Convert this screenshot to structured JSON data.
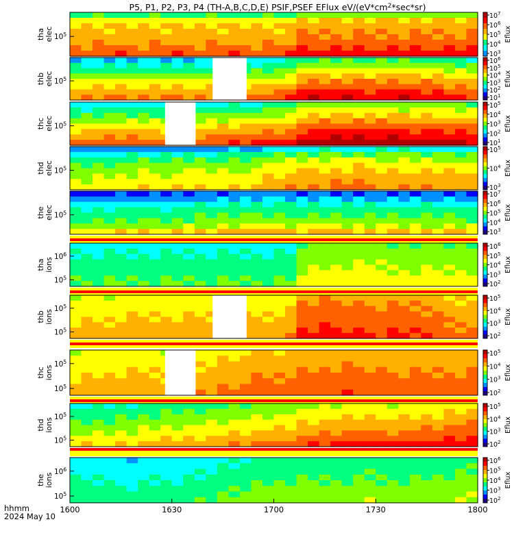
{
  "title": "P5, P1, P2, P3, P4 (TH-A,B,C,D,E) PSIF,PSEF EFlux eV/(eV*cm^2*sec*sr)",
  "footer": {
    "line1": "hhmm",
    "line2": "2024 May 10"
  },
  "colors": {
    "colormap": [
      "#20007a",
      "#0000ff",
      "#0090ff",
      "#00ffff",
      "#00ff80",
      "#7fff00",
      "#ffff00",
      "#ffb000",
      "#ff6000",
      "#ff0000",
      "#b00000"
    ],
    "flag_red": "#ff0000",
    "flag_yellow": "#ffff00",
    "flag_black": "#000000",
    "gap": "#ffffff"
  },
  "chart_data": {
    "type": "heatmap",
    "x_ticks": [
      "1600",
      "1630",
      "1700",
      "1730",
      "1800"
    ],
    "x_range": [
      "16:00",
      "18:00"
    ],
    "x_bins": 36,
    "panels": [
      {
        "id": "tha-elec",
        "ylabel": [
          "tha",
          "elec"
        ],
        "y_ticks": [
          "10^5"
        ],
        "cbar_label": "Eflux",
        "cbar_ticks": [
          "10^7",
          "10^6",
          "10^5",
          "10^4",
          "10^3"
        ],
        "cbar_colors": [
          2,
          3,
          4,
          6,
          7,
          8,
          9,
          10
        ],
        "data_gap": null,
        "base": [
          3.3,
          3.3,
          3.3,
          3.3,
          3.3,
          3.3,
          3.3,
          3.3,
          3.3,
          3.3,
          3.3,
          3.3,
          3.3,
          3.3,
          3.3,
          3.3,
          3.3,
          3.3,
          3.3,
          3.3,
          4.0,
          4.0,
          4.0,
          4.0,
          4.0,
          4.0,
          4.0,
          4.0,
          4.0,
          4.0,
          4.0,
          4.0,
          4.0,
          4.0,
          4.0,
          4.0
        ],
        "bands": [
          1.0,
          2.6,
          3.2,
          3.4,
          3.6,
          4.0,
          4.4,
          5.0
        ],
        "flags": null
      },
      {
        "id": "thb-elec",
        "ylabel": [
          "thb",
          "elec"
        ],
        "y_ticks": [
          "10^5"
        ],
        "cbar_label": "Eflux",
        "cbar_ticks": [
          "10^6",
          "10^5",
          "10^4",
          "10^3",
          "10^2",
          "10^1"
        ],
        "cbar_colors": [
          0,
          1,
          2,
          3,
          4,
          5,
          6,
          7,
          8,
          9,
          10
        ],
        "data_gap": [
          "16:42",
          "16:52"
        ],
        "base": [
          5.8,
          5.8,
          5.8,
          5.8,
          5.8,
          5.8,
          5.8,
          5.8,
          5.8,
          5.8,
          5.8,
          5.8,
          5.8,
          5.8,
          6.0,
          6.0,
          6.0,
          6.0,
          6.2,
          6.6,
          7.4,
          7.6,
          7.6,
          7.4,
          7.6,
          7.6,
          7.4,
          7.6,
          7.6,
          7.6,
          7.4,
          7.4,
          7.4,
          7.0,
          7.0,
          6.8
        ],
        "bands": [
          -3.2,
          -2.4,
          -1.6,
          -0.8,
          0.0,
          0.6,
          1.2,
          1.8
        ],
        "flags": null
      },
      {
        "id": "thc-elec",
        "ylabel": [
          "thc",
          "elec"
        ],
        "y_ticks": [
          "10^5"
        ],
        "cbar_label": "Eflux",
        "cbar_ticks": [
          "10^5",
          "10^4",
          "10^3",
          "10^2",
          "10^1"
        ],
        "cbar_colors": [
          0,
          1,
          2,
          3,
          4,
          5,
          6,
          7,
          8,
          9,
          10
        ],
        "data_gap": [
          "16:28",
          "16:37"
        ],
        "base": [
          5.6,
          5.6,
          5.6,
          5.8,
          5.8,
          5.8,
          5.8,
          5.8,
          5.6,
          5.6,
          5.6,
          5.8,
          6.0,
          6.0,
          6.2,
          6.2,
          6.2,
          6.6,
          6.6,
          6.8,
          7.6,
          7.8,
          7.8,
          7.8,
          7.8,
          7.8,
          7.8,
          7.8,
          7.8,
          7.6,
          7.6,
          7.8,
          7.6,
          7.6,
          7.4,
          7.4
        ],
        "bands": [
          -2.8,
          -2.0,
          -1.2,
          -0.4,
          0.4,
          1.0,
          1.6,
          2.2
        ],
        "flags": null
      },
      {
        "id": "thd-elec",
        "ylabel": [
          "thd",
          "elec"
        ],
        "y_ticks": [
          "10^5"
        ],
        "cbar_label": "Eflux",
        "cbar_ticks": [
          "10^5",
          "10^4",
          "10^3"
        ],
        "cbar_colors": [
          0,
          1,
          2,
          3,
          4,
          5,
          6,
          7,
          8,
          9,
          10
        ],
        "data_gap": null,
        "base": [
          4.8,
          4.8,
          5.0,
          4.8,
          5.0,
          5.0,
          5.2,
          5.0,
          5.0,
          5.2,
          5.4,
          5.2,
          5.0,
          5.2,
          5.4,
          5.2,
          5.4,
          5.8,
          6.0,
          6.2,
          6.4,
          6.2,
          6.4,
          6.4,
          6.2,
          6.6,
          6.2,
          6.4,
          6.2,
          6.4,
          6.2,
          6.2,
          6.2,
          6.2,
          6.0,
          6.2
        ],
        "bands": [
          -3.0,
          -1.6,
          -0.8,
          -0.2,
          0.2,
          0.6,
          0.9,
          1.2
        ],
        "flags": null
      },
      {
        "id": "the-elec",
        "ylabel": [
          "the",
          "elec"
        ],
        "y_ticks": [
          "10^5"
        ],
        "cbar_label": "Eflux",
        "cbar_ticks": [
          "10^7",
          "10^6",
          "10^5",
          "10^4",
          "10^3"
        ],
        "cbar_colors": [
          0,
          1,
          2,
          3,
          4,
          5,
          6,
          7,
          8,
          9,
          10
        ],
        "data_gap": null,
        "base": [
          3.4,
          3.4,
          3.6,
          3.6,
          3.8,
          3.6,
          3.8,
          3.8,
          3.6,
          3.8,
          3.8,
          4.0,
          3.8,
          4.0,
          4.0,
          4.2,
          4.2,
          4.2,
          4.2,
          4.0,
          4.0,
          4.2,
          4.2,
          4.0,
          4.0,
          4.0,
          4.0,
          4.0,
          4.0,
          3.8,
          4.0,
          4.0,
          3.8,
          4.0,
          3.8,
          3.8
        ],
        "bands": [
          -2.4,
          -1.6,
          -0.6,
          0.0,
          0.4,
          0.8,
          1.6,
          2.6
        ],
        "flags": [
          "y",
          "r",
          "y"
        ]
      },
      {
        "id": "tha-ions",
        "ylabel": [
          "tha",
          "ions"
        ],
        "y_ticks": [
          "10^6",
          "10^5"
        ],
        "cbar_label": "Eflux",
        "cbar_ticks": [
          "10^6",
          "10^5",
          "10^4",
          "10^3",
          "10^2"
        ],
        "cbar_colors": [
          0,
          1,
          2,
          3,
          4,
          5,
          6,
          7,
          8,
          9,
          10
        ],
        "data_gap": null,
        "base": [
          3.6,
          3.6,
          3.6,
          3.6,
          3.6,
          3.6,
          3.6,
          3.6,
          3.6,
          3.6,
          3.6,
          3.6,
          3.6,
          3.6,
          3.6,
          3.6,
          3.6,
          3.6,
          3.6,
          3.6,
          5.0,
          5.2,
          5.0,
          5.2,
          5.0,
          5.2,
          5.0,
          5.2,
          5.0,
          5.2,
          5.0,
          5.2,
          5.0,
          5.0,
          5.0,
          5.0
        ],
        "bands": [
          -0.4,
          -0.2,
          0.0,
          0.2,
          0.4,
          0.6,
          0.8,
          1.0
        ],
        "flags": [
          "y",
          "r",
          "y"
        ]
      },
      {
        "id": "thb-ions",
        "ylabel": [
          "thb",
          "ions"
        ],
        "y_ticks": [
          "10^5",
          "10^5"
        ],
        "cbar_label": "Eflux",
        "cbar_ticks": [
          "10^5",
          "10^4",
          "10^3",
          "10^2"
        ],
        "cbar_colors": [
          0,
          1,
          2,
          3,
          4,
          5,
          6,
          7,
          8,
          9,
          10
        ],
        "data_gap": [
          "16:42",
          "16:52"
        ],
        "base": [
          6.2,
          6.2,
          6.2,
          6.2,
          6.4,
          6.4,
          6.4,
          6.4,
          6.4,
          6.4,
          6.4,
          6.4,
          6.4,
          6.4,
          6.4,
          6.4,
          6.4,
          6.4,
          6.6,
          6.6,
          8.0,
          7.8,
          8.0,
          7.8,
          7.8,
          8.0,
          7.8,
          7.8,
          8.0,
          7.8,
          7.8,
          7.6,
          7.8,
          7.2,
          7.0,
          7.0
        ],
        "bands": [
          -0.6,
          -0.4,
          -0.2,
          0.0,
          0.2,
          0.4,
          0.6,
          0.8
        ],
        "flags": [
          "y",
          "r",
          "y"
        ]
      },
      {
        "id": "thc-ions",
        "ylabel": [
          "thc",
          "ions"
        ],
        "y_ticks": [
          "10^5",
          "10^5"
        ],
        "cbar_label": "Eflux",
        "cbar_ticks": [
          "10^5",
          "10^4",
          "10^3",
          "10^2"
        ],
        "cbar_colors": [
          0,
          1,
          2,
          3,
          4,
          5,
          6,
          7,
          8,
          9,
          10
        ],
        "data_gap": [
          "16:28",
          "16:37"
        ],
        "base": [
          6.2,
          6.2,
          6.2,
          6.4,
          6.4,
          6.4,
          6.4,
          6.4,
          6.2,
          6.4,
          6.6,
          6.6,
          6.6,
          6.8,
          6.8,
          7.0,
          7.2,
          7.0,
          7.2,
          7.2,
          7.4,
          7.4,
          7.6,
          7.4,
          7.6,
          7.4,
          7.4,
          7.6,
          7.4,
          7.4,
          7.4,
          7.4,
          7.4,
          7.4,
          7.2,
          7.4
        ],
        "bands": [
          -0.6,
          -0.4,
          -0.2,
          0.0,
          0.2,
          0.4,
          0.6,
          0.8
        ],
        "flags": [
          "y",
          "r",
          "y"
        ]
      },
      {
        "id": "thd-ions",
        "ylabel": [
          "thd",
          "ions"
        ],
        "y_ticks": [
          "10^5",
          "10^5"
        ],
        "cbar_label": "Eflux",
        "cbar_ticks": [
          "10^5",
          "10^4",
          "10^3",
          "10^2"
        ],
        "cbar_colors": [
          0,
          1,
          2,
          3,
          4,
          5,
          6,
          7,
          8,
          9,
          10
        ],
        "data_gap": null,
        "base": [
          4.6,
          4.6,
          4.8,
          4.6,
          4.8,
          4.8,
          5.0,
          5.0,
          5.2,
          5.0,
          5.2,
          5.4,
          5.4,
          5.6,
          5.6,
          5.8,
          5.8,
          6.0,
          6.0,
          6.2,
          6.6,
          6.6,
          6.8,
          6.8,
          6.8,
          7.0,
          6.8,
          7.0,
          6.8,
          7.0,
          7.0,
          7.2,
          7.0,
          7.2,
          7.4,
          7.6
        ],
        "bands": [
          -1.2,
          -0.8,
          -0.4,
          0.0,
          0.4,
          0.8,
          1.2,
          1.8
        ],
        "flags": [
          "r",
          "y",
          "y"
        ]
      },
      {
        "id": "the-ions",
        "ylabel": [
          "the",
          "ions"
        ],
        "y_ticks": [
          "10^6",
          "10^5"
        ],
        "cbar_label": "Eflux",
        "cbar_ticks": [
          "10^6",
          "10^5",
          "10^4",
          "10^3",
          "10^2"
        ],
        "cbar_colors": [
          0,
          1,
          2,
          3,
          4,
          5,
          6,
          7,
          8,
          9,
          10
        ],
        "data_gap": null,
        "base": [
          3.4,
          3.4,
          3.4,
          3.4,
          3.2,
          3.2,
          3.2,
          3.4,
          3.4,
          3.4,
          3.6,
          3.6,
          3.8,
          3.8,
          4.0,
          4.0,
          4.2,
          4.2,
          4.4,
          4.4,
          4.6,
          4.4,
          4.4,
          4.4,
          4.4,
          4.4,
          4.6,
          4.4,
          4.6,
          4.4,
          4.6,
          4.4,
          4.6,
          4.6,
          4.6,
          4.8
        ],
        "bands": [
          -0.6,
          -0.4,
          -0.2,
          0.0,
          0.2,
          0.4,
          0.6,
          0.8
        ],
        "flags": null
      }
    ]
  }
}
